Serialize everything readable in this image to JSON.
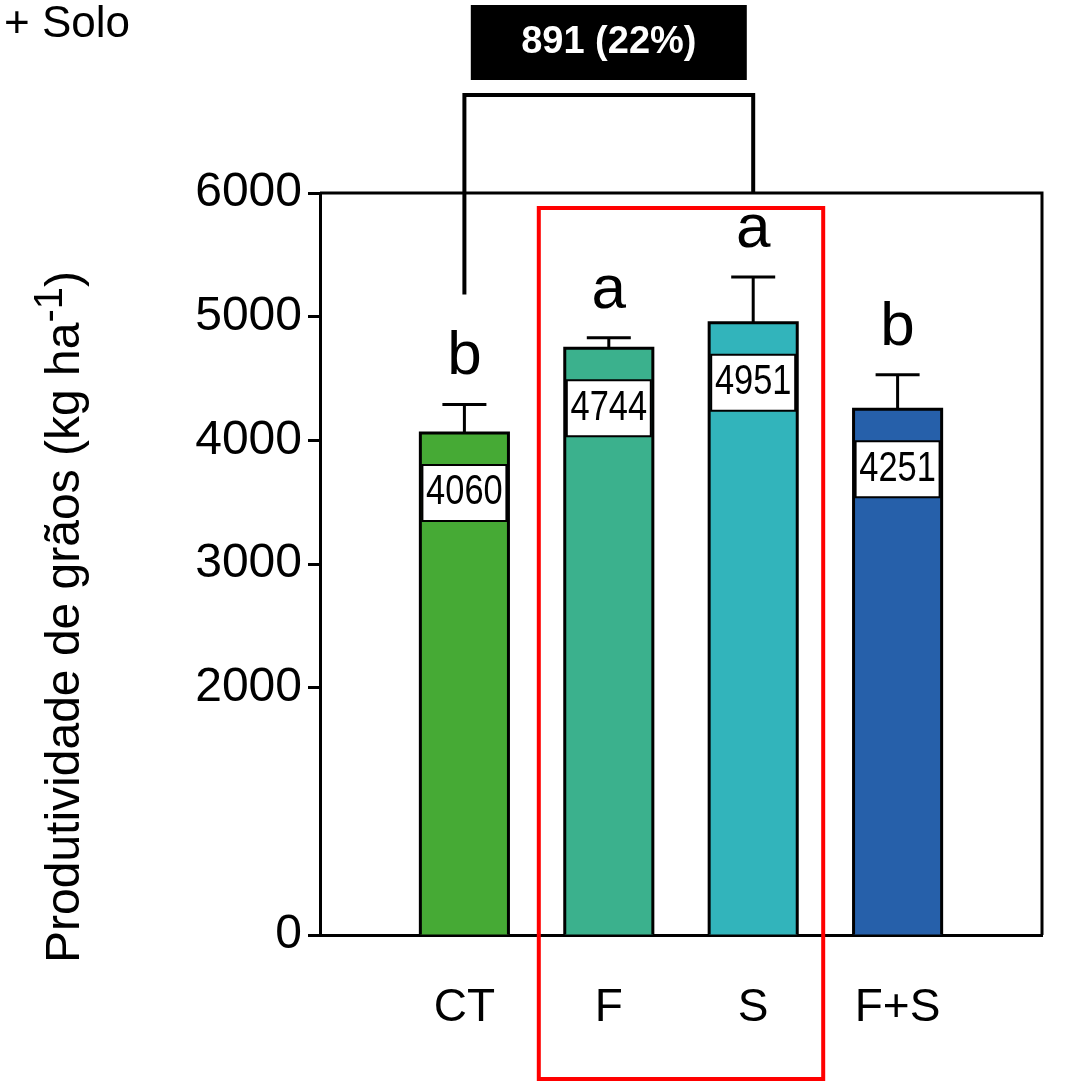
{
  "chart_data": {
    "type": "bar",
    "title": "+ Solo",
    "ylabel": "Produtividade de grãos  (kg ha$^{-1}$)",
    "categories": [
      "CT",
      "F",
      "S",
      "F+S"
    ],
    "values": [
      4060,
      4744,
      4951,
      4251
    ],
    "colors": [
      "#46aa35",
      "#3bb18d",
      "#32b4bb",
      "#2660aa"
    ],
    "errors": [
      [
        4060,
        4290
      ],
      [
        4744,
        4829
      ],
      [
        4951,
        5321
      ],
      [
        4251,
        4531
      ]
    ],
    "ylim": [
      0,
      6000
    ],
    "yticks": [
      0,
      2000,
      3000,
      4000,
      5000,
      6000
    ],
    "data_labels": true,
    "grid": false,
    "legend": false,
    "annotations": [
      "891 (22%)",
      "b",
      "a",
      "a",
      "b"
    ]
  }
}
